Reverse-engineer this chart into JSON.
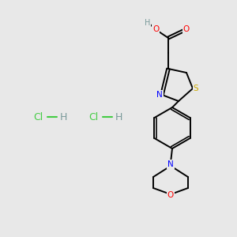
{
  "bg_color": "#e8e8e8",
  "atom_colors": {
    "C": "#000000",
    "H": "#7a9a9a",
    "O": "#ff0000",
    "N": "#0000ff",
    "S": "#ccaa00",
    "Cl": "#44cc44"
  },
  "bond_color": "#000000",
  "figsize": [
    3.0,
    3.0
  ],
  "dpi": 100
}
